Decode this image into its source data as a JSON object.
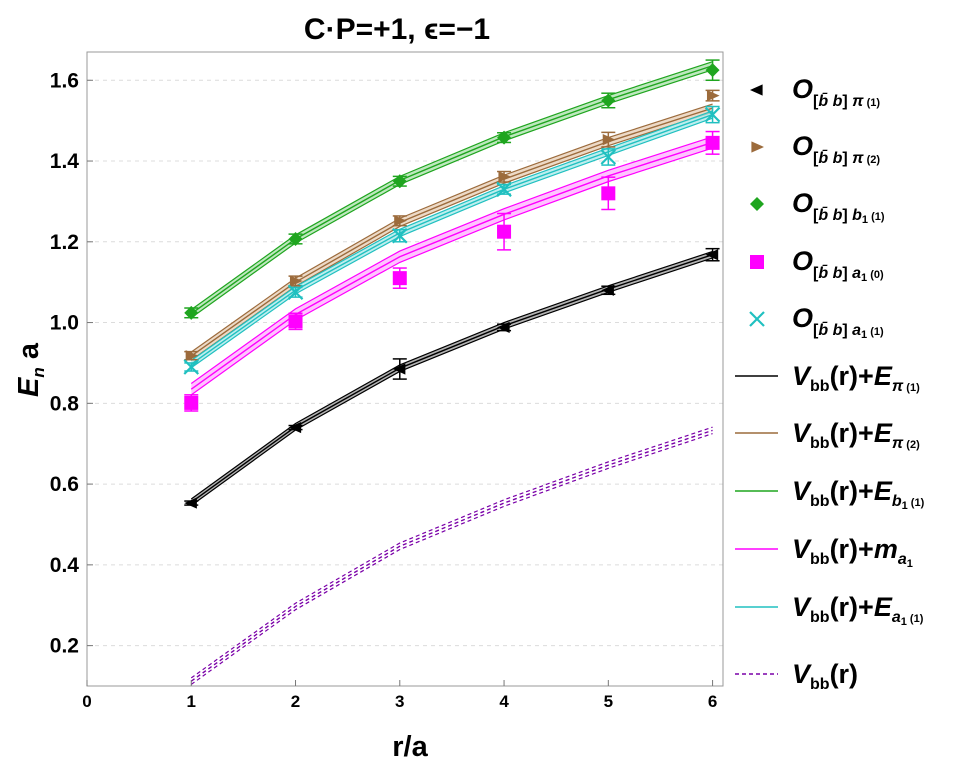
{
  "chart_data": {
    "type": "line",
    "title": "C·P=+1, ϵ=−1",
    "xlabel": "r/a",
    "ylabel": "E_n a",
    "xlim": [
      0,
      6.1
    ],
    "ylim": [
      0.1,
      1.67
    ],
    "xticks": [
      0,
      1,
      2,
      3,
      4,
      5,
      6
    ],
    "yticks": [
      0.2,
      0.4,
      0.6,
      0.8,
      1.0,
      1.2,
      1.4,
      1.6
    ],
    "grid": "horizontal dashed",
    "legend_position": "right",
    "point_series": [
      {
        "label": "O[b̄ b] π (1)",
        "marker": "triangle-left",
        "color": "#000000",
        "x": [
          1,
          2,
          3,
          4,
          5,
          6
        ],
        "y": [
          0.553,
          0.74,
          0.885,
          0.988,
          1.08,
          1.168
        ],
        "err": [
          0.005,
          0.005,
          0.025,
          0.008,
          0.01,
          0.015
        ]
      },
      {
        "label": "O[b̄ b] π (2)",
        "marker": "triangle-right",
        "color": "#9c6b3c",
        "x": [
          1,
          2,
          3,
          4,
          5,
          6
        ],
        "y": [
          0.918,
          1.103,
          1.252,
          1.361,
          1.453,
          1.562
        ],
        "err": [
          0.01,
          0.012,
          0.012,
          0.013,
          0.018,
          0.013
        ]
      },
      {
        "label": "O[b̄ b] b1 (1)",
        "marker": "diamond",
        "color": "#1fa51f",
        "x": [
          1,
          2,
          3,
          4,
          5,
          6
        ],
        "y": [
          1.024,
          1.207,
          1.35,
          1.458,
          1.55,
          1.625
        ],
        "err": [
          0.012,
          0.012,
          0.012,
          0.012,
          0.018,
          0.025
        ]
      },
      {
        "label": "O[b̄ b] a1 (0)",
        "marker": "square",
        "color": "#ff00ff",
        "x": [
          1,
          2,
          3,
          4,
          5,
          6
        ],
        "y": [
          0.801,
          1.003,
          1.11,
          1.225,
          1.32,
          1.445
        ],
        "err": [
          0.02,
          0.02,
          0.025,
          0.045,
          0.04,
          0.028
        ]
      },
      {
        "label": "O[b̄ b] a1 (1)",
        "marker": "cross",
        "color": "#20c0c0",
        "x": [
          1,
          2,
          3,
          4,
          5,
          6
        ],
        "y": [
          0.89,
          1.075,
          1.215,
          1.33,
          1.41,
          1.515
        ],
        "err": [
          0.01,
          0.012,
          0.015,
          0.012,
          0.02,
          0.02
        ]
      }
    ],
    "band_series": [
      {
        "label": "Vbb(r)+Eπ (1)",
        "color": "#000000",
        "style": "solid",
        "band_fill": "#9a9a9a",
        "x": [
          1,
          2,
          3,
          4,
          5,
          6
        ],
        "y": [
          0.555,
          0.742,
          0.887,
          0.992,
          1.083,
          1.168
        ],
        "half_width": 0.008
      },
      {
        "label": "Vbb(r)+Eπ (2)",
        "color": "#9c6b3c",
        "style": "solid",
        "band_fill": "#e7cdb4",
        "x": [
          1,
          2,
          3,
          4,
          5,
          6
        ],
        "y": [
          0.917,
          1.1,
          1.248,
          1.355,
          1.448,
          1.531
        ],
        "half_width": 0.01
      },
      {
        "label": "Vbb(r)+Eb1 (1)",
        "color": "#1fa51f",
        "style": "solid",
        "band_fill": "#a8e0a8",
        "x": [
          1,
          2,
          3,
          4,
          5,
          6
        ],
        "y": [
          1.022,
          1.207,
          1.352,
          1.46,
          1.552,
          1.636
        ],
        "half_width": 0.01
      },
      {
        "label": "Vbb(r)+ma1",
        "color": "#ff00ff",
        "style": "solid",
        "band_fill": "#ffb0ff",
        "x": [
          1,
          2,
          3,
          4,
          5,
          6
        ],
        "y": [
          0.835,
          1.02,
          1.163,
          1.268,
          1.363,
          1.446
        ],
        "half_width": 0.014
      },
      {
        "label": "Vbb(r)+Ea1 (1)",
        "color": "#20c0c0",
        "style": "solid",
        "band_fill": "#a8e8e8",
        "x": [
          1,
          2,
          3,
          4,
          5,
          6
        ],
        "y": [
          0.897,
          1.08,
          1.222,
          1.33,
          1.423,
          1.515
        ],
        "half_width": 0.009
      },
      {
        "label": "Vbb(r)",
        "color": "#7a00a8",
        "style": "dashed",
        "band_fill": "none",
        "x": [
          1,
          2,
          3,
          4,
          5,
          6
        ],
        "y": [
          0.112,
          0.297,
          0.446,
          0.553,
          0.647,
          0.733
        ],
        "half_width": 0.008
      }
    ]
  },
  "text": {
    "title": "C·P=+1, ϵ=−1",
    "xlabel": "r/a",
    "ylabel_main": "E",
    "ylabel_sub": "n",
    "ylabel_tail": " a",
    "legend": {
      "O": "O",
      "bracket_open": "[",
      "bbar": "b̄",
      "b": " b",
      "bracket_close": "]",
      "pi": "π",
      "b1_b": "b",
      "a1_a": "a",
      "sub_one": "1",
      "n1": "(1)",
      "n2": "(2)",
      "n0": "(0)",
      "V": "V",
      "bb": "bb",
      "r_plus": "(r)+",
      "r_only": "(r)",
      "E": "E",
      "m": "m"
    }
  }
}
